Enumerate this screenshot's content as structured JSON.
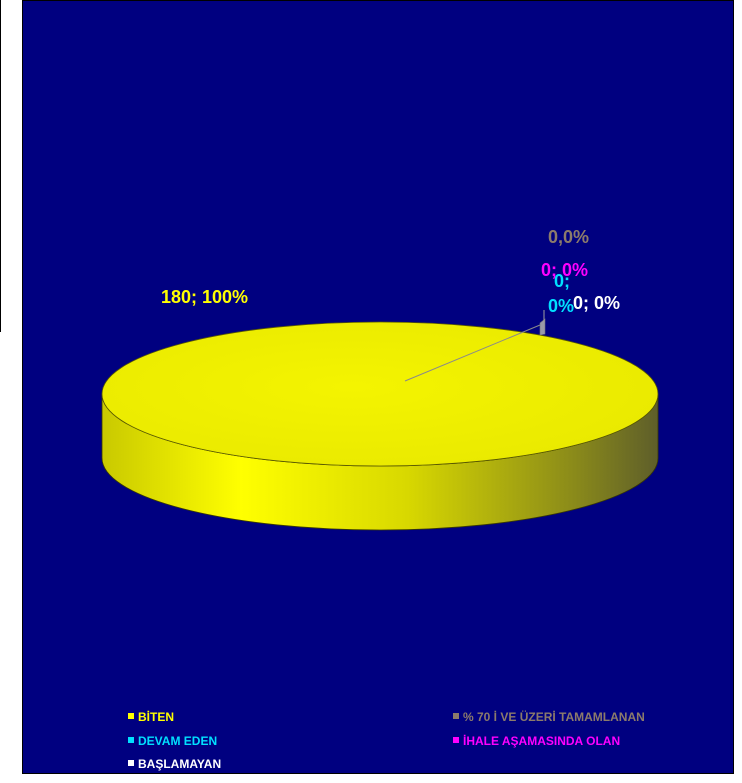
{
  "chart_data": {
    "type": "pie",
    "style": "3d",
    "title": "",
    "categories": [
      "BİTEN",
      "% 70 İ VE ÜZERİ TAMAMLANAN",
      "DEVAM EDEN",
      "İHALE AŞAMASINDA OLAN",
      "BAŞLAMAYAN"
    ],
    "values": [
      180,
      0,
      0,
      0,
      0
    ],
    "colors": [
      "#ffff00",
      "#8c7b6b",
      "#00e0ff",
      "#ff00ff",
      "#ffffff"
    ],
    "data_labels": [
      "180; 100%",
      "0,0%",
      "0; 0%",
      "0; 0%",
      "0; 0%"
    ],
    "data_label_parts": {
      "devam_eden": [
        "0;",
        "0%"
      ]
    },
    "legend_position": "bottom",
    "background": "#000080"
  }
}
